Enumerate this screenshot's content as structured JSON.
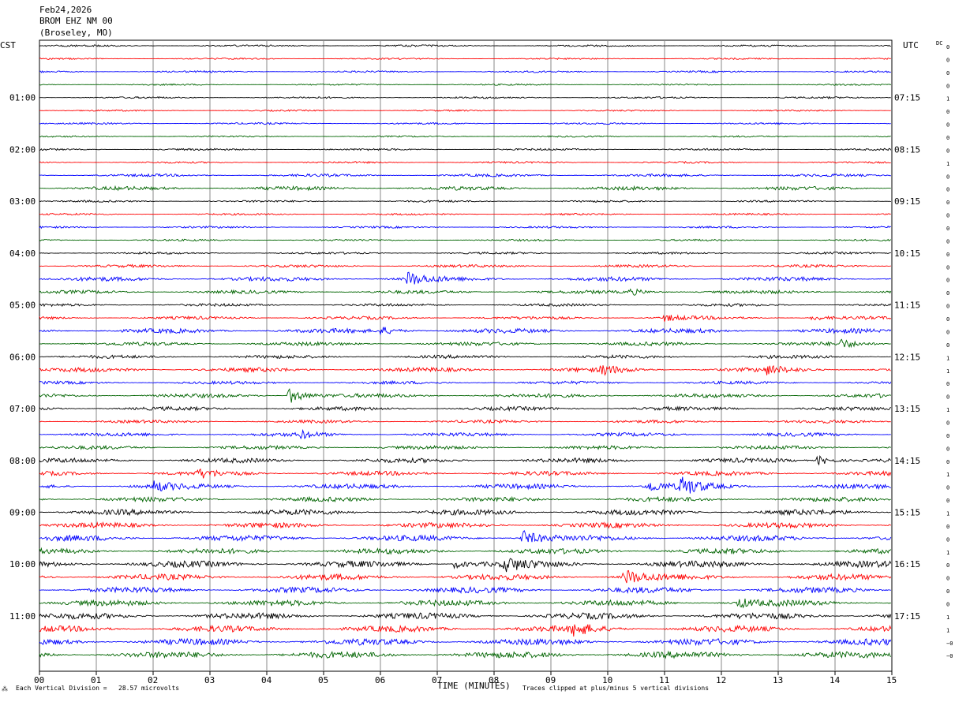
{
  "header": {
    "date": "Feb24,2026",
    "station": "BROM EHZ NM 00",
    "location": "(Broseley, MO)",
    "left_zone": "CST",
    "right_zone": "UTC",
    "dc_label": "DC"
  },
  "footer": {
    "scale": "Each Vertical Division =   28.57 microvolts",
    "clip": "Traces clipped at plus/minus 5 vertical divisions",
    "mark": "⁂"
  },
  "chart_data": {
    "type": "line",
    "title": "",
    "xlabel": "TIME (MINUTES)",
    "ylabel": "",
    "xlim": [
      0,
      15
    ],
    "x_ticks": [
      "00",
      "01",
      "02",
      "03",
      "04",
      "05",
      "06",
      "07",
      "08",
      "09",
      "10",
      "11",
      "12",
      "13",
      "14",
      "15"
    ],
    "trace_count": 48,
    "trace_interval_minutes": 15,
    "trace_colors": [
      "#000000",
      "#ff0000",
      "#0000ff",
      "#006400"
    ],
    "left_hour_labels": [
      "01:00",
      "02:00",
      "03:00",
      "04:00",
      "05:00",
      "06:00",
      "07:00",
      "08:00",
      "09:00",
      "10:00",
      "11:00"
    ],
    "right_hour_labels": [
      "07:15",
      "08:15",
      "09:15",
      "10:15",
      "11:15",
      "12:15",
      "13:15",
      "14:15",
      "15:15",
      "16:15",
      "17:15"
    ],
    "hour_label_trace_indices": [
      4,
      8,
      12,
      16,
      20,
      24,
      28,
      32,
      36,
      40,
      44
    ],
    "dc_values": [
      "0",
      "0",
      "0",
      "0",
      "1",
      "0",
      "0",
      "0",
      "0",
      "1",
      "0",
      "0",
      "0",
      "0",
      "0",
      "0",
      "0",
      "0",
      "0",
      "0",
      "0",
      "0",
      "0",
      "0",
      "1",
      "1",
      "0",
      "0",
      "1",
      "0",
      "0",
      "0",
      "0",
      "1",
      "0",
      "0",
      "1",
      "0",
      "0",
      "1",
      "0",
      "0",
      "0",
      "0",
      "1",
      "1",
      "−0",
      "−0"
    ],
    "noise_amplitude": [
      1.2,
      1.0,
      1.2,
      1.0,
      1.2,
      1.0,
      1.2,
      1.0,
      1.3,
      1.2,
      1.8,
      2.5,
      1.3,
      1.2,
      1.3,
      1.2,
      1.4,
      1.8,
      2.8,
      2.2,
      1.8,
      2.0,
      3.0,
      2.4,
      2.2,
      2.8,
      2.0,
      2.6,
      2.5,
      2.0,
      2.4,
      2.4,
      3.0,
      2.8,
      3.2,
      3.0,
      3.6,
      3.4,
      3.8,
      3.5,
      4.2,
      3.8,
      3.8,
      3.8,
      4.0,
      4.0,
      4.2,
      4.2
    ],
    "events": [
      {
        "trace": 18,
        "minute": 6.48,
        "amplitude": 9
      },
      {
        "trace": 19,
        "minute": 10.4,
        "amplitude": 4
      },
      {
        "trace": 21,
        "minute": 11.0,
        "amplitude": 4
      },
      {
        "trace": 21,
        "minute": 13.6,
        "amplitude": 3
      },
      {
        "trace": 22,
        "minute": 6.0,
        "amplitude": 5
      },
      {
        "trace": 23,
        "minute": 14.1,
        "amplitude": 5
      },
      {
        "trace": 25,
        "minute": 9.9,
        "amplitude": 6
      },
      {
        "trace": 25,
        "minute": 12.8,
        "amplitude": 5
      },
      {
        "trace": 27,
        "minute": 4.4,
        "amplitude": 10
      },
      {
        "trace": 30,
        "minute": 4.6,
        "amplitude": 4
      },
      {
        "trace": 32,
        "minute": 13.7,
        "amplitude": 6
      },
      {
        "trace": 33,
        "minute": 2.8,
        "amplitude": 5
      },
      {
        "trace": 34,
        "minute": 2.0,
        "amplitude": 6
      },
      {
        "trace": 34,
        "minute": 11.3,
        "amplitude": 12
      },
      {
        "trace": 34,
        "minute": 10.7,
        "amplitude": 7
      },
      {
        "trace": 38,
        "minute": 8.5,
        "amplitude": 10
      },
      {
        "trace": 40,
        "minute": 8.2,
        "amplitude": 8
      },
      {
        "trace": 40,
        "minute": 7.3,
        "amplitude": 5
      },
      {
        "trace": 41,
        "minute": 10.3,
        "amplitude": 10
      },
      {
        "trace": 43,
        "minute": 12.3,
        "amplitude": 6
      },
      {
        "trace": 45,
        "minute": 9.4,
        "amplitude": 8
      }
    ],
    "grid": true
  }
}
